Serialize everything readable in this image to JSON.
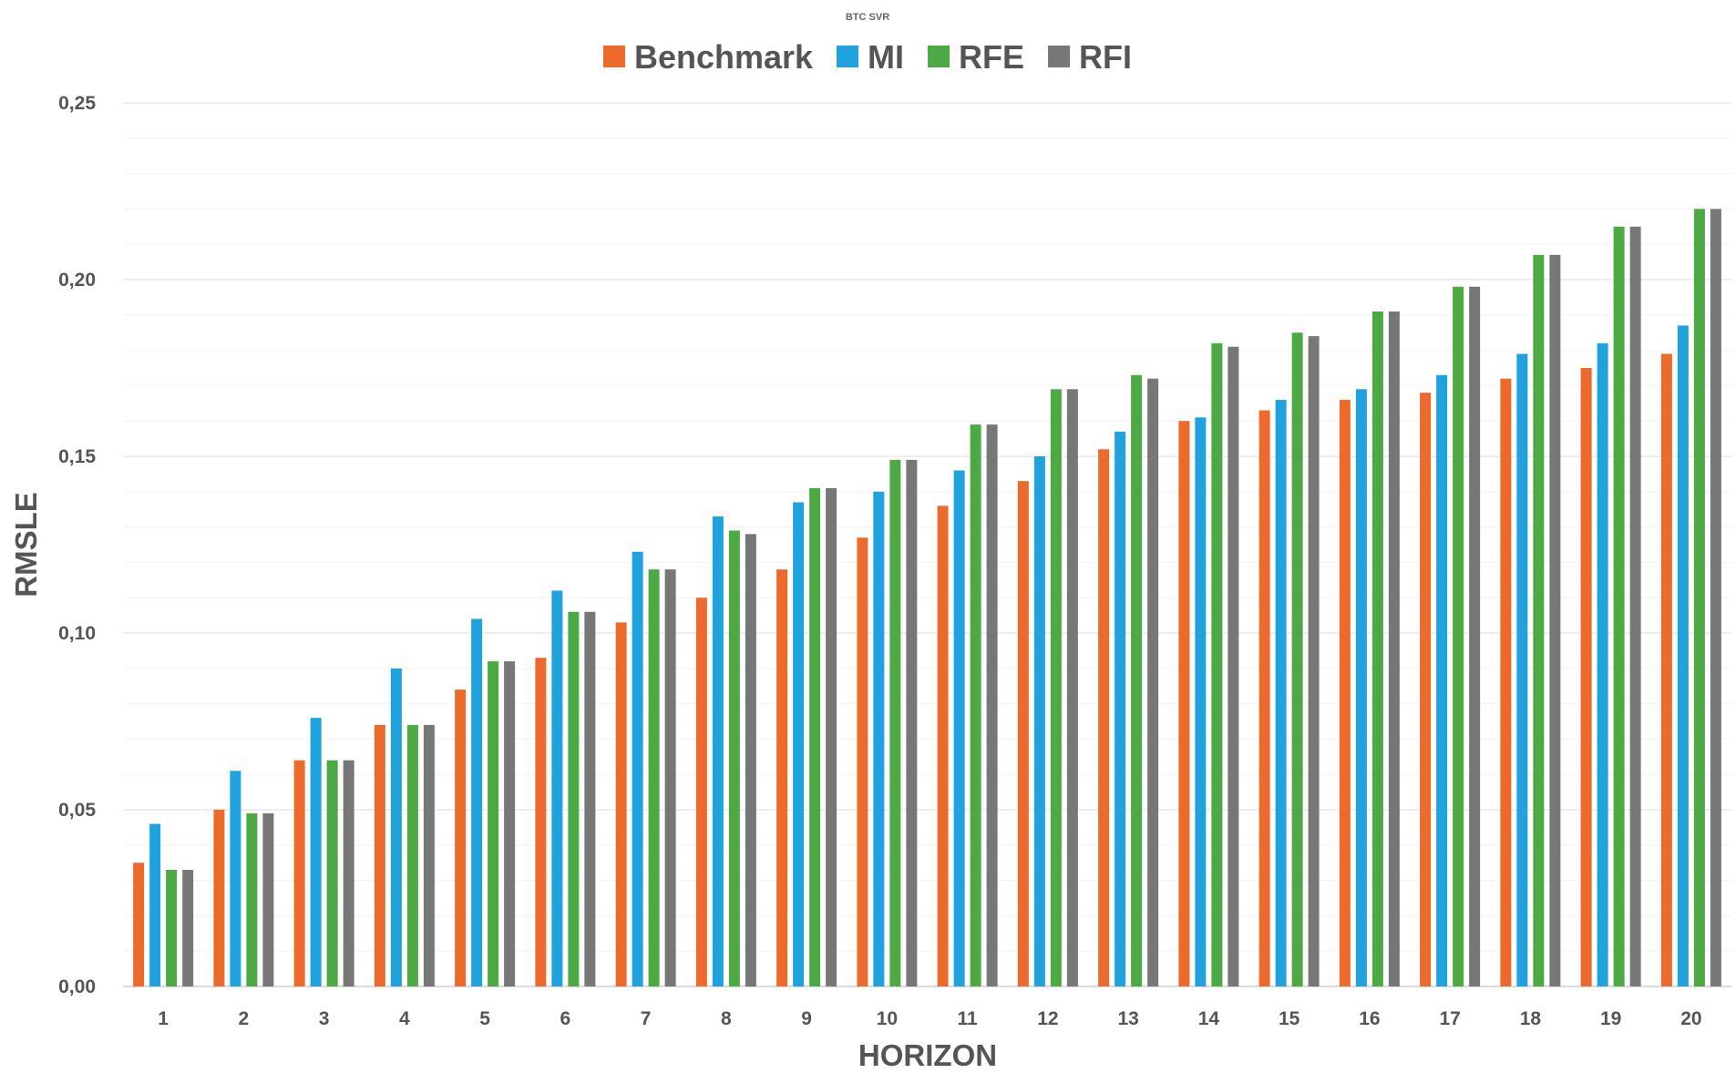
{
  "chart_data": {
    "type": "bar",
    "title": "BTC SVR",
    "xlabel": "HORIZON",
    "ylabel": "RMSLE",
    "ylim": [
      0,
      0.25
    ],
    "yticks": [
      0,
      0.05,
      0.1,
      0.15,
      0.2,
      0.25
    ],
    "ytick_labels": [
      "0,00",
      "0,05",
      "0,10",
      "0,15",
      "0,20",
      "0,25"
    ],
    "grid": true,
    "legend_position": "top-center",
    "categories": [
      "1",
      "2",
      "3",
      "4",
      "5",
      "6",
      "7",
      "8",
      "9",
      "10",
      "11",
      "12",
      "13",
      "14",
      "15",
      "16",
      "17",
      "18",
      "19",
      "20"
    ],
    "series": [
      {
        "name": "Benchmark",
        "color": "#ED6A2D",
        "values": [
          0.035,
          0.05,
          0.064,
          0.074,
          0.084,
          0.093,
          0.103,
          0.11,
          0.118,
          0.127,
          0.136,
          0.143,
          0.152,
          0.16,
          0.163,
          0.166,
          0.168,
          0.172,
          0.175,
          0.179
        ]
      },
      {
        "name": "MI",
        "color": "#1FA2DD",
        "values": [
          0.046,
          0.061,
          0.076,
          0.09,
          0.104,
          0.112,
          0.123,
          0.133,
          0.137,
          0.14,
          0.146,
          0.15,
          0.157,
          0.161,
          0.166,
          0.169,
          0.173,
          0.179,
          0.182,
          0.187
        ]
      },
      {
        "name": "RFE",
        "color": "#4CA944",
        "values": [
          0.033,
          0.049,
          0.064,
          0.074,
          0.092,
          0.106,
          0.118,
          0.129,
          0.141,
          0.149,
          0.159,
          0.169,
          0.173,
          0.182,
          0.185,
          0.191,
          0.198,
          0.207,
          0.215,
          0.22
        ]
      },
      {
        "name": "RFI",
        "color": "#777777",
        "values": [
          0.033,
          0.049,
          0.064,
          0.074,
          0.092,
          0.106,
          0.118,
          0.128,
          0.141,
          0.149,
          0.159,
          0.169,
          0.172,
          0.181,
          0.184,
          0.191,
          0.198,
          0.207,
          0.215,
          0.22
        ]
      }
    ]
  }
}
